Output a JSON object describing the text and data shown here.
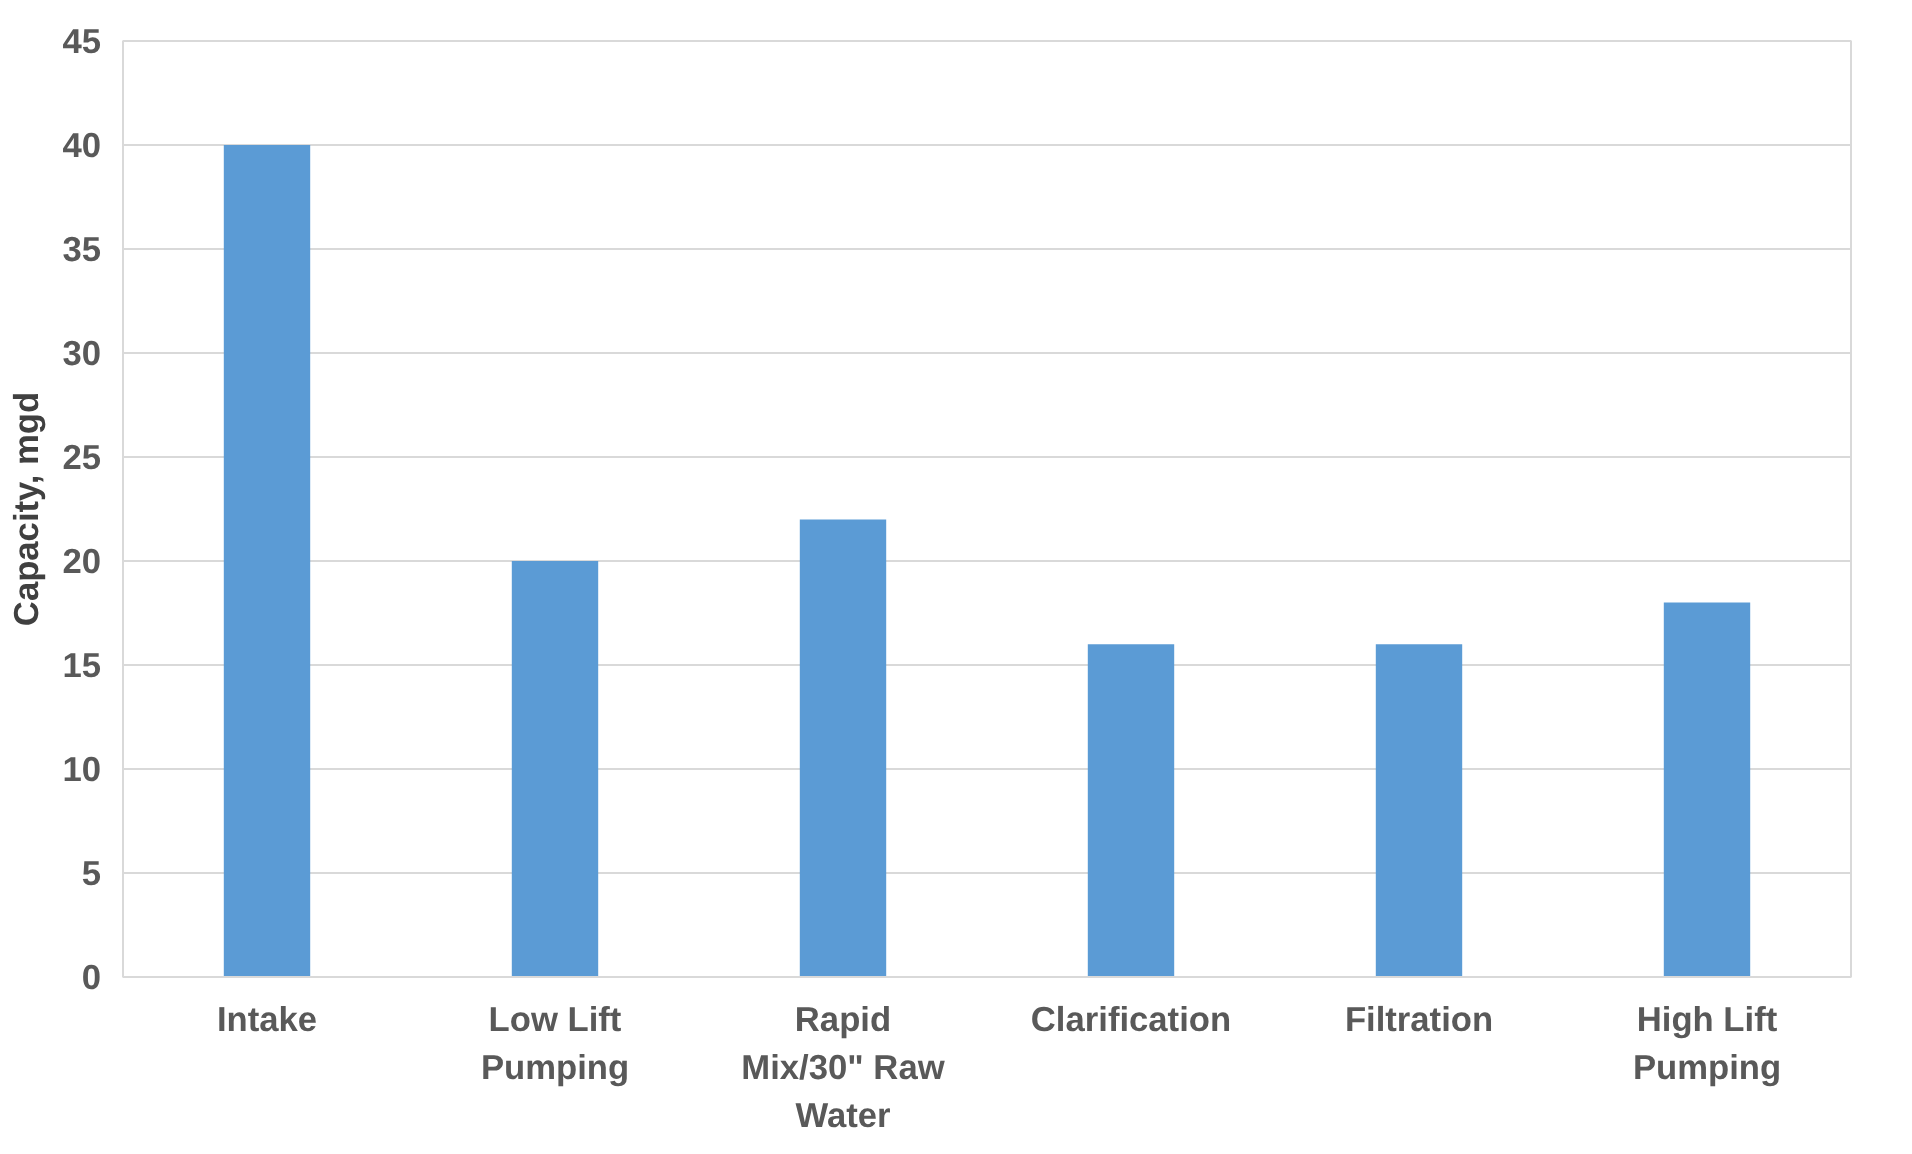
{
  "chart_data": {
    "type": "bar",
    "ylabel": "Capacity, mgd",
    "categories": [
      "Intake",
      "Low Lift Pumping",
      "Rapid Mix/30\" Raw Water",
      "Clarification",
      "Filtration",
      "High Lift Pumping"
    ],
    "values": [
      40,
      20,
      22,
      16,
      16,
      18
    ],
    "color": "#5b9bd5",
    "ylim": [
      0,
      45
    ],
    "yticks": [
      0,
      5,
      10,
      15,
      20,
      25,
      30,
      35,
      40,
      45
    ],
    "grid": "y"
  }
}
